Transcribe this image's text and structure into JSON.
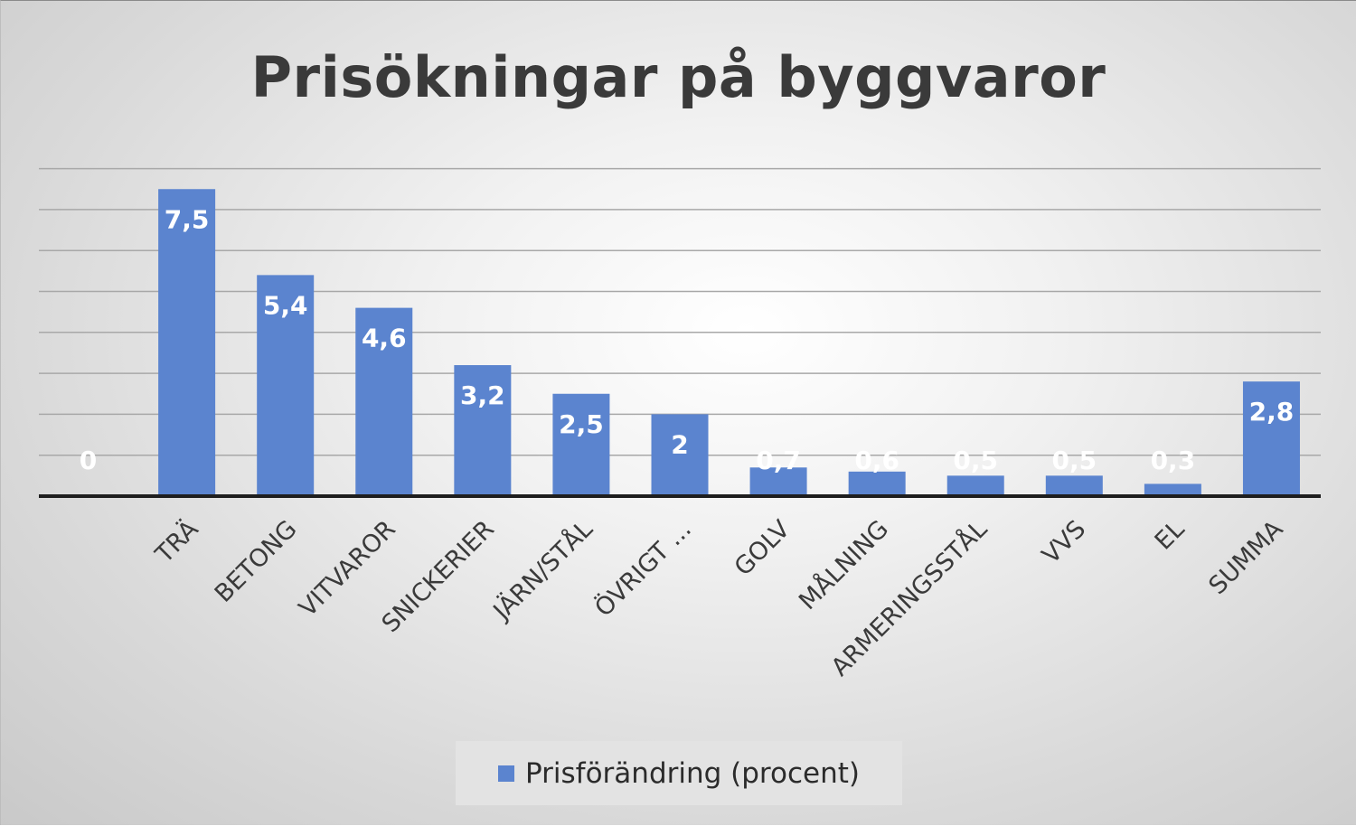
{
  "chart_data": {
    "type": "bar",
    "title": "Prisökningar på byggvaror",
    "categories": [
      "",
      "TRÄ",
      "BETONG",
      "VITVAROR",
      "SNICKERIER",
      "JÄRN/STÅL",
      "ÖVRIGT ...",
      "GOLV",
      "MÅLNING",
      "ARMERINGSSTÅL",
      "VVS",
      "EL",
      "SUMMA"
    ],
    "series": [
      {
        "name": "Prisförändring (procent)",
        "values": [
          0,
          7.5,
          5.4,
          4.6,
          3.2,
          2.5,
          2,
          0.7,
          0.6,
          0.5,
          0.5,
          0.3,
          2.8
        ],
        "labels": [
          "0",
          "7,5",
          "5,4",
          "4,6",
          "3,2",
          "2,5",
          "2",
          "0,7",
          "0,6",
          "0,5",
          "0,5",
          "0,3",
          "2,8"
        ]
      }
    ],
    "ylim": [
      0,
      8
    ],
    "grid": true,
    "legend_position": "bottom",
    "bar_color": "#5b84cf",
    "label_color": "#ffffff"
  }
}
